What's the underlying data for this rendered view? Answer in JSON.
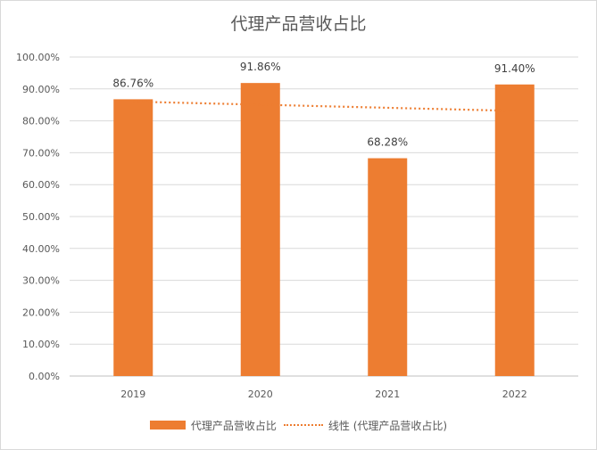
{
  "colors": {
    "bar": "#ED7D31",
    "trendline": "#ED7D31",
    "gridline": "#d9d9d9",
    "axis": "#bfbfbf"
  },
  "chart_data": {
    "type": "bar",
    "title": "代理产品营收占比",
    "xlabel": "",
    "ylabel": "",
    "categories": [
      "2019",
      "2020",
      "2021",
      "2022"
    ],
    "series": [
      {
        "name": "代理产品营收占比",
        "values": [
          86.76,
          91.86,
          68.28,
          91.4
        ],
        "data_labels": [
          "86.76%",
          "91.86%",
          "68.28%",
          "91.40%"
        ]
      }
    ],
    "trendline": {
      "type": "linear",
      "name": "线性 (代理产品营收占比)",
      "style": "dotted"
    },
    "ylim": [
      0,
      100
    ],
    "yticks": [
      0,
      10,
      20,
      30,
      40,
      50,
      60,
      70,
      80,
      90,
      100
    ],
    "ytick_labels": [
      "0.00%",
      "10.00%",
      "20.00%",
      "30.00%",
      "40.00%",
      "50.00%",
      "60.00%",
      "70.00%",
      "80.00%",
      "90.00%",
      "100.00%"
    ],
    "grid": true,
    "legend_position": "bottom"
  }
}
